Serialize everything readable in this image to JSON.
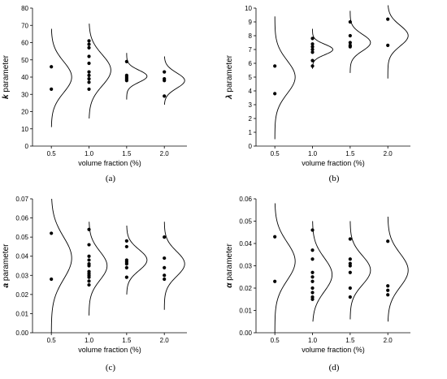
{
  "chart_data": [
    {
      "type": "scatter",
      "panel_label": "(a)",
      "ylabel_symbol": "k",
      "ylabel_text": "parameter",
      "xlabel": "volume fraction (%)",
      "x_ticks": [
        "0.5",
        "1.0",
        "1.5",
        "2.0"
      ],
      "y_ticks": [
        "0",
        "10",
        "20",
        "30",
        "40",
        "50",
        "60",
        "70",
        "80"
      ],
      "xlim": [
        0.25,
        2.3
      ],
      "ylim": [
        0,
        80
      ],
      "series": [
        {
          "x": 0.5,
          "values": [
            46,
            33
          ]
        },
        {
          "x": 1.0,
          "values": [
            61,
            59,
            57,
            52,
            48,
            43,
            41,
            39,
            37,
            33
          ]
        },
        {
          "x": 1.5,
          "values": [
            49,
            41,
            40,
            39,
            38
          ]
        },
        {
          "x": 2.0,
          "values": [
            43,
            39,
            38,
            29
          ]
        }
      ],
      "distributions": [
        {
          "x": 0.5,
          "mean": 40,
          "sd": 9,
          "amp": 0.27,
          "lo": 11,
          "hi": 68
        },
        {
          "x": 1.0,
          "mean": 44,
          "sd": 9,
          "amp": 0.29,
          "lo": 16,
          "hi": 71
        },
        {
          "x": 1.5,
          "mean": 40.5,
          "sd": 3.5,
          "amp": 0.27,
          "lo": 27,
          "hi": 54
        },
        {
          "x": 2.0,
          "mean": 38,
          "sd": 4.5,
          "amp": 0.27,
          "lo": 24,
          "hi": 52
        }
      ]
    },
    {
      "type": "scatter",
      "panel_label": "(b)",
      "ylabel_symbol": "λ",
      "ylabel_text": "parameter",
      "xlabel": "volume fraction (%)",
      "x_ticks": [
        "0.5",
        "1.0",
        "1.5",
        "2.0"
      ],
      "y_ticks": [
        "0",
        "1",
        "2",
        "3",
        "4",
        "5",
        "6",
        "7",
        "8",
        "9",
        "10"
      ],
      "xlim": [
        0.25,
        2.3
      ],
      "ylim": [
        0,
        10
      ],
      "series": [
        {
          "x": 0.5,
          "values": [
            5.8,
            3.8
          ]
        },
        {
          "x": 1.0,
          "values": [
            7.8,
            7.4,
            7.2,
            7.0,
            6.8,
            6.2,
            5.8
          ]
        },
        {
          "x": 1.5,
          "values": [
            9.0,
            8.0,
            7.5,
            7.3,
            7.2
          ]
        },
        {
          "x": 2.0,
          "values": [
            9.2,
            7.3
          ]
        }
      ],
      "distributions": [
        {
          "x": 0.5,
          "mean": 5.0,
          "sd": 1.2,
          "amp": 0.27,
          "lo": 0.5,
          "hi": 9.4
        },
        {
          "x": 1.0,
          "mean": 7.0,
          "sd": 0.38,
          "amp": 0.27,
          "lo": 5.6,
          "hi": 8.5
        },
        {
          "x": 1.5,
          "mean": 7.5,
          "sd": 0.6,
          "amp": 0.27,
          "lo": 5.3,
          "hi": 9.8
        },
        {
          "x": 2.0,
          "mean": 8.0,
          "sd": 0.75,
          "amp": 0.27,
          "lo": 4.9,
          "hi": 10.2
        }
      ]
    },
    {
      "type": "scatter",
      "panel_label": "(c)",
      "ylabel_symbol": "a",
      "ylabel_text": "parameter",
      "xlabel": "volume fraction (%)",
      "x_ticks": [
        "0.5",
        "1.0",
        "1.5",
        "2.0"
      ],
      "y_ticks": [
        "0.00",
        "0.01",
        "0.02",
        "0.03",
        "0.04",
        "0.05",
        "0.06",
        "0.07"
      ],
      "xlim": [
        0.25,
        2.3
      ],
      "ylim": [
        0,
        0.07
      ],
      "series": [
        {
          "x": 0.5,
          "values": [
            0.052,
            0.028
          ]
        },
        {
          "x": 1.0,
          "values": [
            0.054,
            0.046,
            0.04,
            0.038,
            0.036,
            0.035,
            0.032,
            0.031,
            0.03,
            0.029,
            0.027,
            0.025
          ]
        },
        {
          "x": 1.5,
          "values": [
            0.048,
            0.045,
            0.038,
            0.037,
            0.036,
            0.034,
            0.029
          ]
        },
        {
          "x": 2.0,
          "values": [
            0.05,
            0.039,
            0.034,
            0.03,
            0.028
          ]
        }
      ],
      "distributions": [
        {
          "x": 0.5,
          "mean": 0.039,
          "sd": 0.011,
          "amp": 0.27,
          "lo": 0.0,
          "hi": 0.07
        },
        {
          "x": 1.0,
          "mean": 0.035,
          "sd": 0.0075,
          "amp": 0.24,
          "lo": 0.009,
          "hi": 0.058
        },
        {
          "x": 1.5,
          "mean": 0.038,
          "sd": 0.0055,
          "amp": 0.27,
          "lo": 0.02,
          "hi": 0.056
        },
        {
          "x": 2.0,
          "mean": 0.036,
          "sd": 0.0065,
          "amp": 0.27,
          "lo": 0.012,
          "hi": 0.058
        }
      ]
    },
    {
      "type": "scatter",
      "panel_label": "(d)",
      "ylabel_symbol": "α",
      "ylabel_text": "parameter",
      "xlabel": "volume fraction (%)",
      "x_ticks": [
        "0.5",
        "1.0",
        "1.5",
        "2.0"
      ],
      "y_ticks": [
        "0.00",
        "0.01",
        "0.02",
        "0.03",
        "0.04",
        "0.05",
        "0.06"
      ],
      "xlim": [
        0.25,
        2.3
      ],
      "ylim": [
        0,
        0.06
      ],
      "series": [
        {
          "x": 0.5,
          "values": [
            0.043,
            0.023
          ]
        },
        {
          "x": 1.0,
          "values": [
            0.046,
            0.037,
            0.033,
            0.027,
            0.025,
            0.023,
            0.02,
            0.018,
            0.016,
            0.015
          ]
        },
        {
          "x": 1.5,
          "values": [
            0.042,
            0.033,
            0.031,
            0.03,
            0.027,
            0.02,
            0.016
          ]
        },
        {
          "x": 2.0,
          "values": [
            0.041,
            0.021,
            0.019,
            0.017
          ]
        }
      ],
      "distributions": [
        {
          "x": 0.5,
          "mean": 0.032,
          "sd": 0.0085,
          "amp": 0.27,
          "lo": 0.0,
          "hi": 0.058
        },
        {
          "x": 1.0,
          "mean": 0.026,
          "sd": 0.0075,
          "amp": 0.26,
          "lo": 0.005,
          "hi": 0.05
        },
        {
          "x": 1.5,
          "mean": 0.028,
          "sd": 0.0065,
          "amp": 0.27,
          "lo": 0.006,
          "hi": 0.05
        },
        {
          "x": 2.0,
          "mean": 0.028,
          "sd": 0.0075,
          "amp": 0.27,
          "lo": 0.005,
          "hi": 0.052
        }
      ]
    }
  ]
}
